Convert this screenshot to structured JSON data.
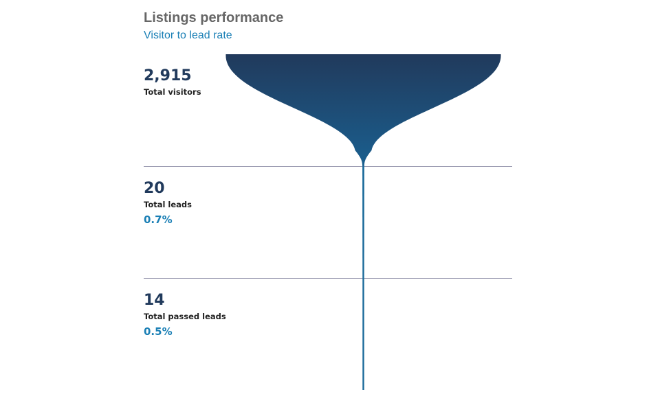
{
  "header": {
    "title": "Listings performance",
    "subtitle": "Visitor to lead rate"
  },
  "colors": {
    "funnel_top": "#213a5c",
    "funnel_bottom": "#1a5f8f",
    "stem": "#1a6a9a",
    "divider": "#9a9ab0",
    "accent": "#1a7fb5",
    "value_text": "#213a5c"
  },
  "chart_data": {
    "type": "funnel",
    "title": "Listings performance",
    "subtitle": "Visitor to lead rate",
    "stages": [
      {
        "label": "Total visitors",
        "value": 2915,
        "display_value": "2,915",
        "rate": null
      },
      {
        "label": "Total leads",
        "value": 20,
        "display_value": "20",
        "rate": "0.7%"
      },
      {
        "label": "Total passed leads",
        "value": 14,
        "display_value": "14",
        "rate": "0.5%"
      }
    ]
  }
}
